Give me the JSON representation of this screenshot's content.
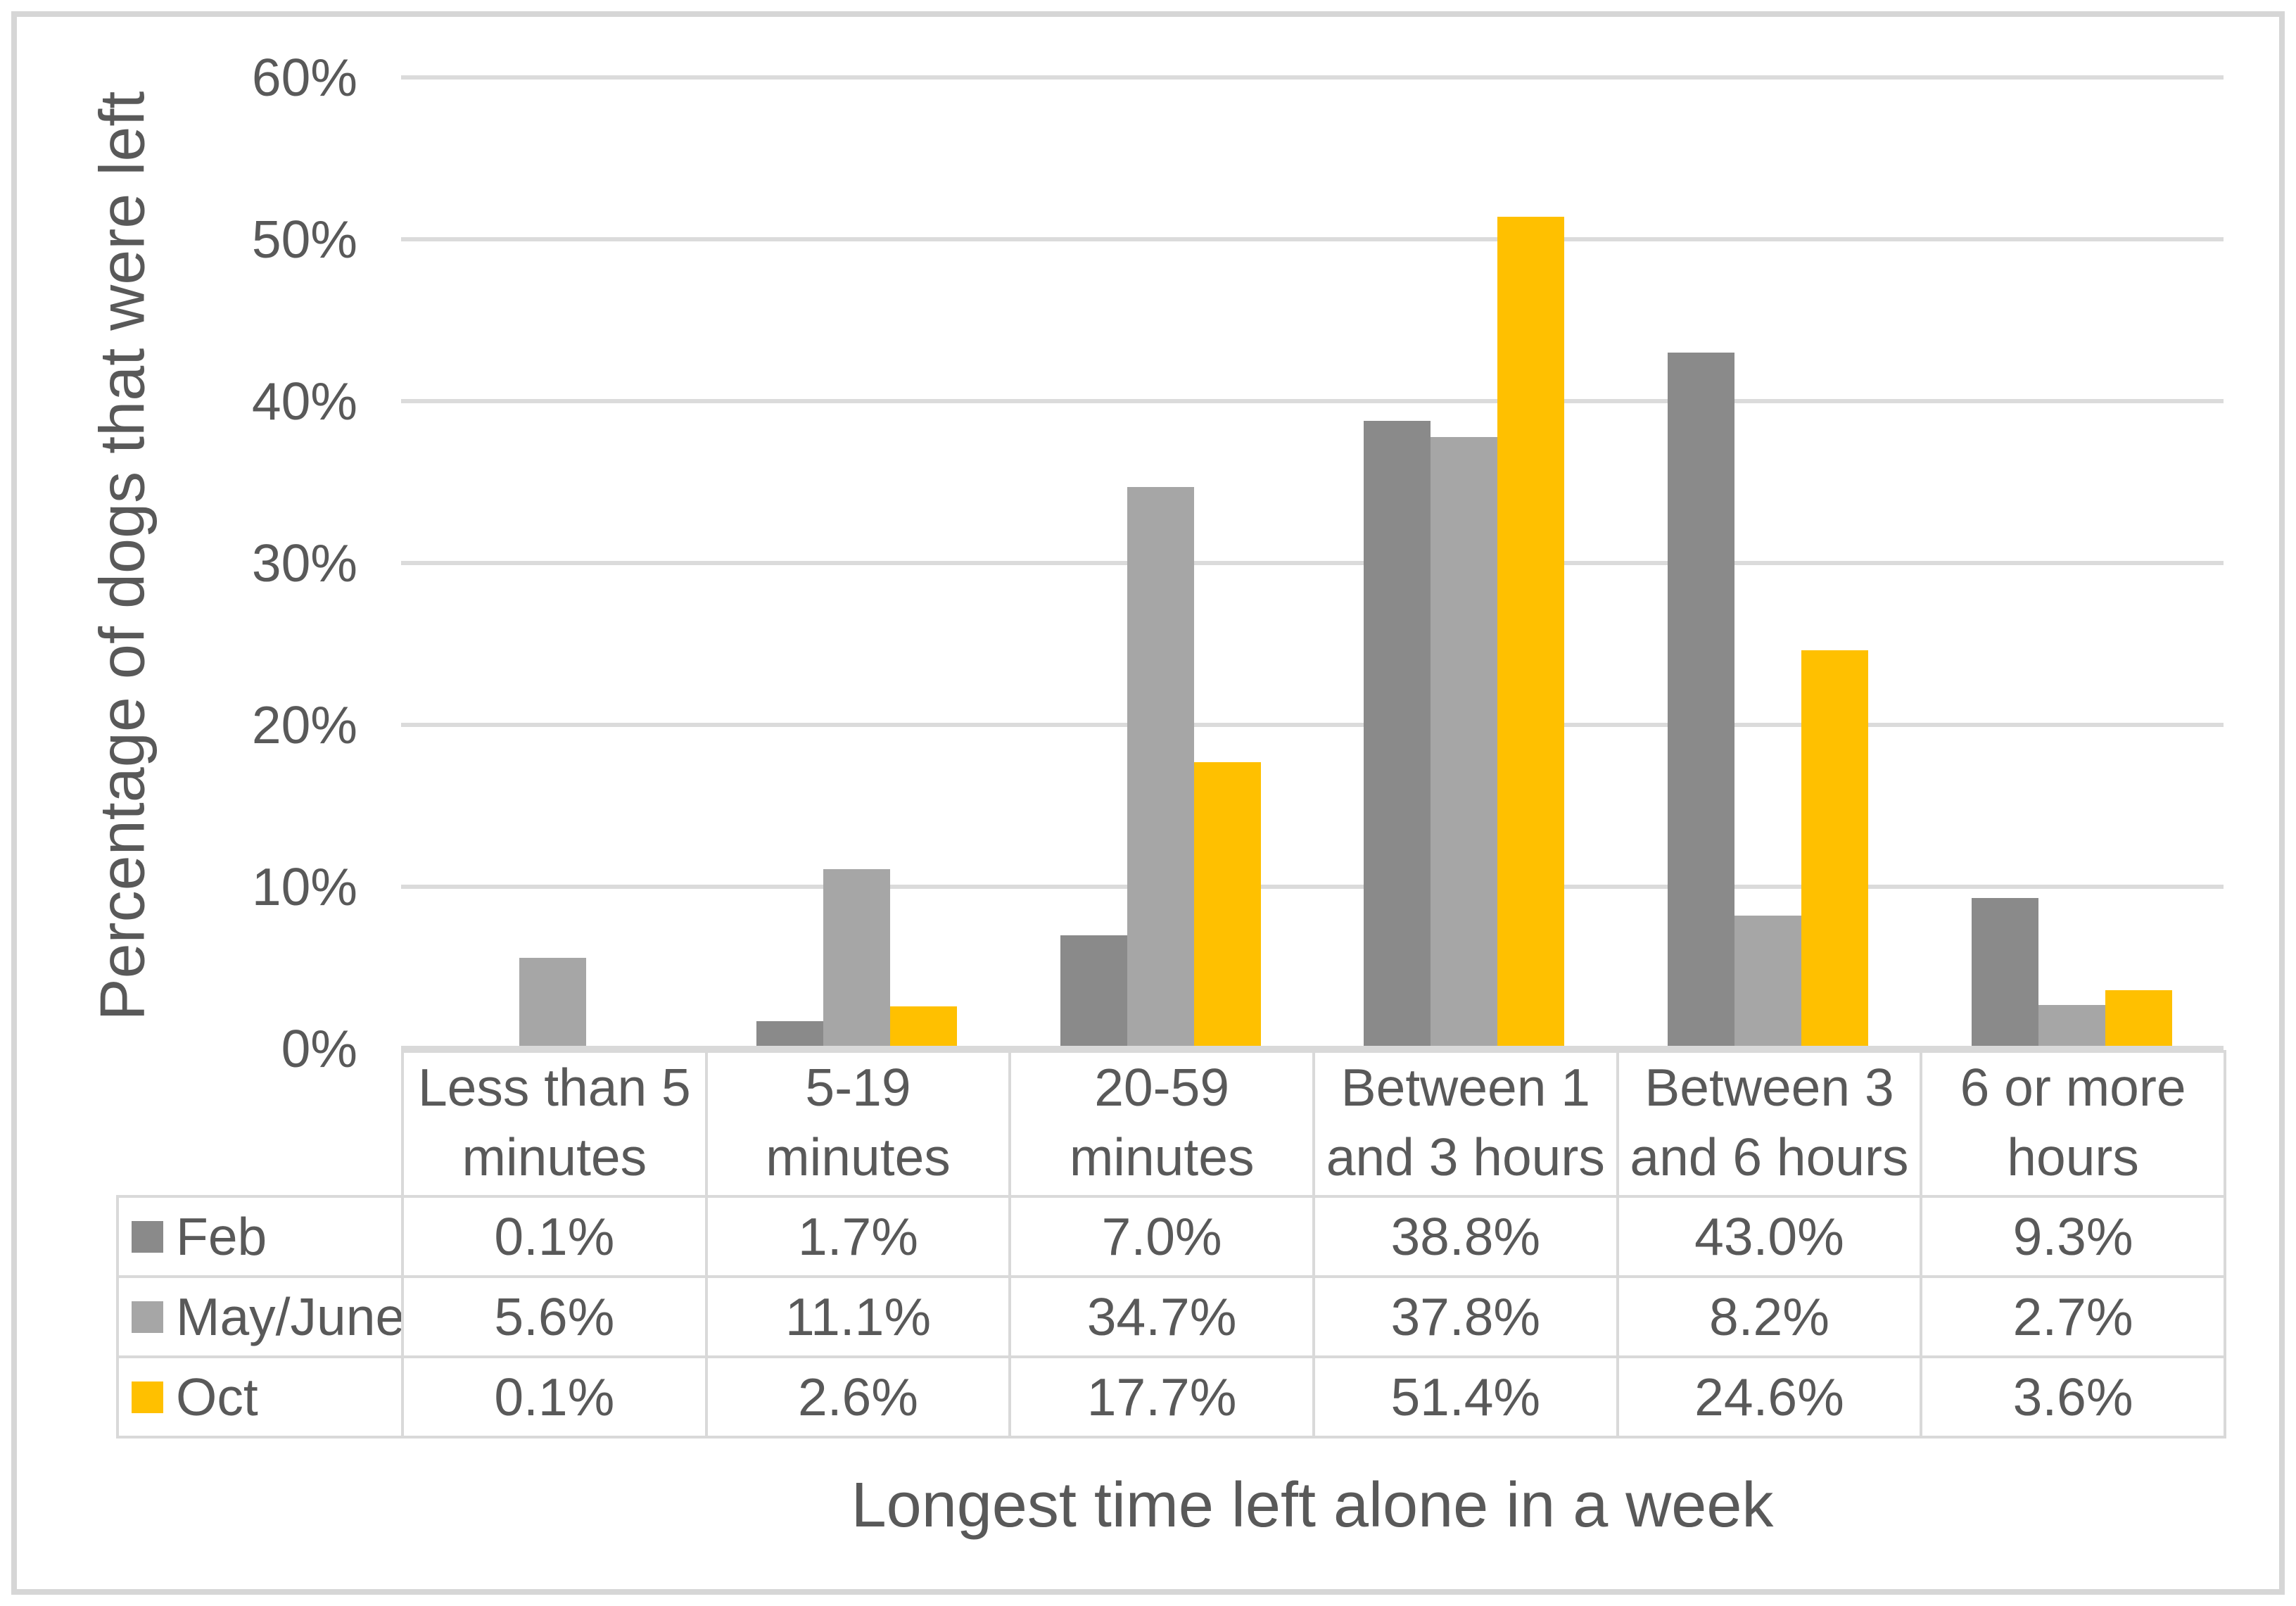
{
  "chart_data": {
    "type": "bar",
    "title": "",
    "xlabel": "Longest time left alone in a week",
    "ylabel": "Percentage of dogs that were left",
    "categories": [
      "Less than 5 minutes",
      "5-19 minutes",
      "20-59 minutes",
      "Between 1 and 3 hours",
      "Between 3 and 6 hours",
      "6 or more hours"
    ],
    "series": [
      {
        "name": "Feb",
        "color": "#8A8A8A",
        "values": [
          0.1,
          1.7,
          7.0,
          38.8,
          43.0,
          9.3
        ]
      },
      {
        "name": "May/June",
        "color": "#A6A6A6",
        "values": [
          5.6,
          11.1,
          34.7,
          37.8,
          8.2,
          2.7
        ]
      },
      {
        "name": "Oct",
        "color": "#FFC000",
        "values": [
          0.1,
          2.6,
          17.7,
          51.4,
          24.6,
          3.6
        ]
      }
    ],
    "ylim": [
      0,
      60
    ],
    "ytick_labels": [
      "60%",
      "50%",
      "40%",
      "30%",
      "20%",
      "10%",
      "0%"
    ],
    "grid": true,
    "legend_position": "table-left"
  },
  "table": {
    "rows": [
      {
        "label": "Feb",
        "values": [
          "0.1%",
          "1.7%",
          "7.0%",
          "38.8%",
          "43.0%",
          "9.3%"
        ]
      },
      {
        "label": "May/June",
        "values": [
          "5.6%",
          "11.1%",
          "34.7%",
          "37.8%",
          "8.2%",
          "2.7%"
        ]
      },
      {
        "label": "Oct",
        "values": [
          "0.1%",
          "2.6%",
          "17.7%",
          "51.4%",
          "24.6%",
          "3.6%"
        ]
      }
    ]
  },
  "colors": {
    "feb_series": "#8A8A8A",
    "may_june_series": "#A6A6A6",
    "oct_series": "#FFC000",
    "gridline": "#DBDBDB",
    "table_border": "#D9D9D9",
    "figure_border": "#D6D6D6",
    "text": "#595959",
    "background": "#FFFFFF"
  }
}
